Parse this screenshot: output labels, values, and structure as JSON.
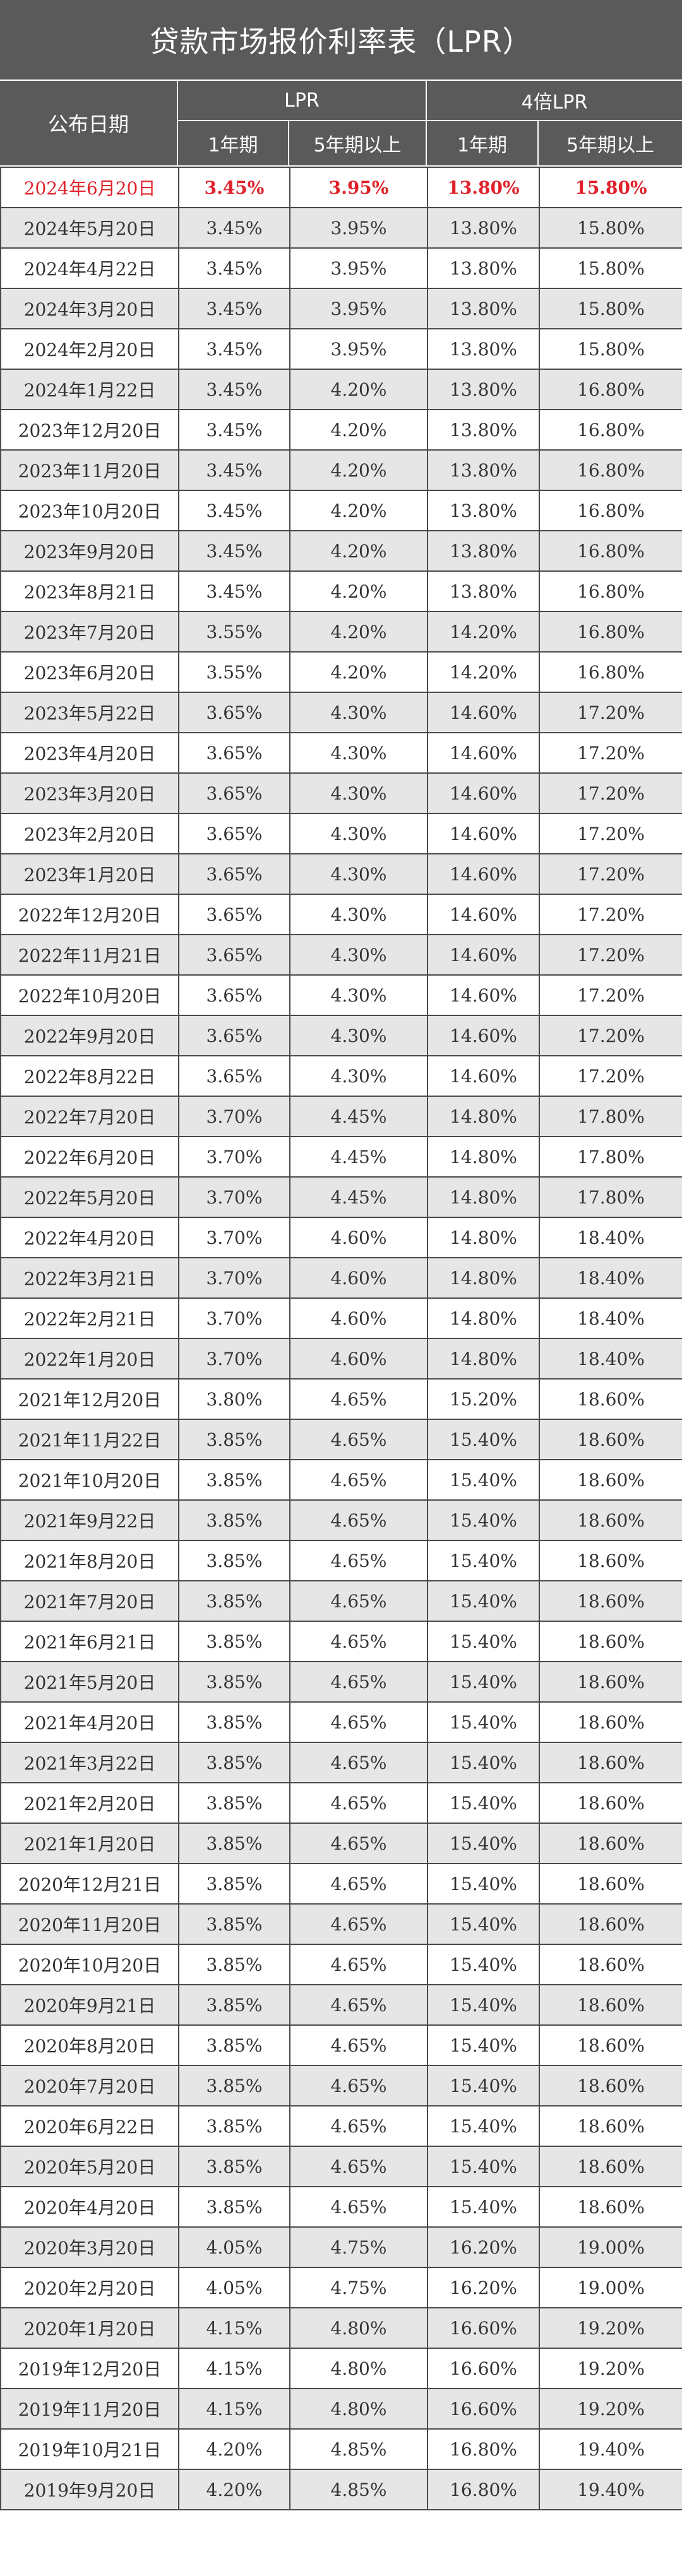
{
  "title": "贷款市场报价利率表（LPR）",
  "headers": {
    "date": "公布日期",
    "lpr_group": "LPR",
    "lpr4_group": "4倍LPR",
    "one_year": "1年期",
    "five_year": "5年期以上",
    "one_year_4x": "1年期",
    "five_year_4x": "5年期以上"
  },
  "colors": {
    "header_bg": "#5a5a5a",
    "alt_row": "#e6e6e6",
    "highlight": "#e0222a"
  },
  "rows": [
    [
      "2024年6月20日",
      "3.45%",
      "3.95%",
      "13.80%",
      "15.80%"
    ],
    [
      "2024年5月20日",
      "3.45%",
      "3.95%",
      "13.80%",
      "15.80%"
    ],
    [
      "2024年4月22日",
      "3.45%",
      "3.95%",
      "13.80%",
      "15.80%"
    ],
    [
      "2024年3月20日",
      "3.45%",
      "3.95%",
      "13.80%",
      "15.80%"
    ],
    [
      "2024年2月20日",
      "3.45%",
      "3.95%",
      "13.80%",
      "15.80%"
    ],
    [
      "2024年1月22日",
      "3.45%",
      "4.20%",
      "13.80%",
      "16.80%"
    ],
    [
      "2023年12月20日",
      "3.45%",
      "4.20%",
      "13.80%",
      "16.80%"
    ],
    [
      "2023年11月20日",
      "3.45%",
      "4.20%",
      "13.80%",
      "16.80%"
    ],
    [
      "2023年10月20日",
      "3.45%",
      "4.20%",
      "13.80%",
      "16.80%"
    ],
    [
      "2023年9月20日",
      "3.45%",
      "4.20%",
      "13.80%",
      "16.80%"
    ],
    [
      "2023年8月21日",
      "3.45%",
      "4.20%",
      "13.80%",
      "16.80%"
    ],
    [
      "2023年7月20日",
      "3.55%",
      "4.20%",
      "14.20%",
      "16.80%"
    ],
    [
      "2023年6月20日",
      "3.55%",
      "4.20%",
      "14.20%",
      "16.80%"
    ],
    [
      "2023年5月22日",
      "3.65%",
      "4.30%",
      "14.60%",
      "17.20%"
    ],
    [
      "2023年4月20日",
      "3.65%",
      "4.30%",
      "14.60%",
      "17.20%"
    ],
    [
      "2023年3月20日",
      "3.65%",
      "4.30%",
      "14.60%",
      "17.20%"
    ],
    [
      "2023年2月20日",
      "3.65%",
      "4.30%",
      "14.60%",
      "17.20%"
    ],
    [
      "2023年1月20日",
      "3.65%",
      "4.30%",
      "14.60%",
      "17.20%"
    ],
    [
      "2022年12月20日",
      "3.65%",
      "4.30%",
      "14.60%",
      "17.20%"
    ],
    [
      "2022年11月21日",
      "3.65%",
      "4.30%",
      "14.60%",
      "17.20%"
    ],
    [
      "2022年10月20日",
      "3.65%",
      "4.30%",
      "14.60%",
      "17.20%"
    ],
    [
      "2022年9月20日",
      "3.65%",
      "4.30%",
      "14.60%",
      "17.20%"
    ],
    [
      "2022年8月22日",
      "3.65%",
      "4.30%",
      "14.60%",
      "17.20%"
    ],
    [
      "2022年7月20日",
      "3.70%",
      "4.45%",
      "14.80%",
      "17.80%"
    ],
    [
      "2022年6月20日",
      "3.70%",
      "4.45%",
      "14.80%",
      "17.80%"
    ],
    [
      "2022年5月20日",
      "3.70%",
      "4.45%",
      "14.80%",
      "17.80%"
    ],
    [
      "2022年4月20日",
      "3.70%",
      "4.60%",
      "14.80%",
      "18.40%"
    ],
    [
      "2022年3月21日",
      "3.70%",
      "4.60%",
      "14.80%",
      "18.40%"
    ],
    [
      "2022年2月21日",
      "3.70%",
      "4.60%",
      "14.80%",
      "18.40%"
    ],
    [
      "2022年1月20日",
      "3.70%",
      "4.60%",
      "14.80%",
      "18.40%"
    ],
    [
      "2021年12月20日",
      "3.80%",
      "4.65%",
      "15.20%",
      "18.60%"
    ],
    [
      "2021年11月22日",
      "3.85%",
      "4.65%",
      "15.40%",
      "18.60%"
    ],
    [
      "2021年10月20日",
      "3.85%",
      "4.65%",
      "15.40%",
      "18.60%"
    ],
    [
      "2021年9月22日",
      "3.85%",
      "4.65%",
      "15.40%",
      "18.60%"
    ],
    [
      "2021年8月20日",
      "3.85%",
      "4.65%",
      "15.40%",
      "18.60%"
    ],
    [
      "2021年7月20日",
      "3.85%",
      "4.65%",
      "15.40%",
      "18.60%"
    ],
    [
      "2021年6月21日",
      "3.85%",
      "4.65%",
      "15.40%",
      "18.60%"
    ],
    [
      "2021年5月20日",
      "3.85%",
      "4.65%",
      "15.40%",
      "18.60%"
    ],
    [
      "2021年4月20日",
      "3.85%",
      "4.65%",
      "15.40%",
      "18.60%"
    ],
    [
      "2021年3月22日",
      "3.85%",
      "4.65%",
      "15.40%",
      "18.60%"
    ],
    [
      "2021年2月20日",
      "3.85%",
      "4.65%",
      "15.40%",
      "18.60%"
    ],
    [
      "2021年1月20日",
      "3.85%",
      "4.65%",
      "15.40%",
      "18.60%"
    ],
    [
      "2020年12月21日",
      "3.85%",
      "4.65%",
      "15.40%",
      "18.60%"
    ],
    [
      "2020年11月20日",
      "3.85%",
      "4.65%",
      "15.40%",
      "18.60%"
    ],
    [
      "2020年10月20日",
      "3.85%",
      "4.65%",
      "15.40%",
      "18.60%"
    ],
    [
      "2020年9月21日",
      "3.85%",
      "4.65%",
      "15.40%",
      "18.60%"
    ],
    [
      "2020年8月20日",
      "3.85%",
      "4.65%",
      "15.40%",
      "18.60%"
    ],
    [
      "2020年7月20日",
      "3.85%",
      "4.65%",
      "15.40%",
      "18.60%"
    ],
    [
      "2020年6月22日",
      "3.85%",
      "4.65%",
      "15.40%",
      "18.60%"
    ],
    [
      "2020年5月20日",
      "3.85%",
      "4.65%",
      "15.40%",
      "18.60%"
    ],
    [
      "2020年4月20日",
      "3.85%",
      "4.65%",
      "15.40%",
      "18.60%"
    ],
    [
      "2020年3月20日",
      "4.05%",
      "4.75%",
      "16.20%",
      "19.00%"
    ],
    [
      "2020年2月20日",
      "4.05%",
      "4.75%",
      "16.20%",
      "19.00%"
    ],
    [
      "2020年1月20日",
      "4.15%",
      "4.80%",
      "16.60%",
      "19.20%"
    ],
    [
      "2019年12月20日",
      "4.15%",
      "4.80%",
      "16.60%",
      "19.20%"
    ],
    [
      "2019年11月20日",
      "4.15%",
      "4.80%",
      "16.60%",
      "19.20%"
    ],
    [
      "2019年10月21日",
      "4.20%",
      "4.85%",
      "16.80%",
      "19.40%"
    ],
    [
      "2019年9月20日",
      "4.20%",
      "4.85%",
      "16.80%",
      "19.40%"
    ]
  ]
}
